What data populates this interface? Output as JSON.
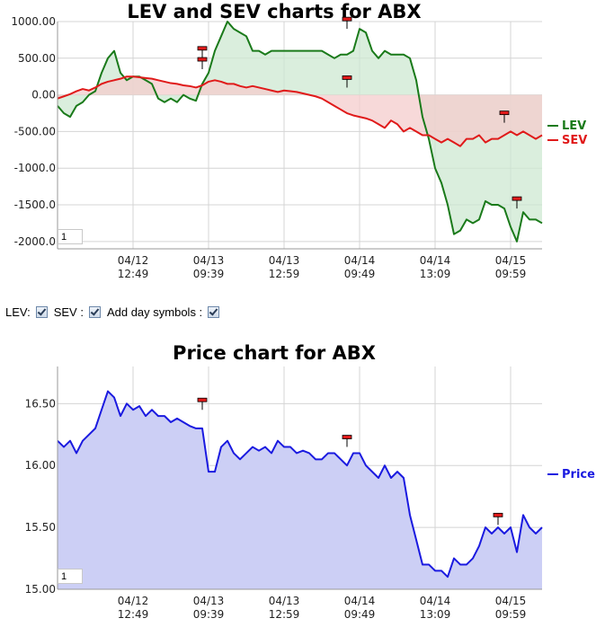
{
  "charts": {
    "lev_sev": {
      "title": "LEV and SEV charts for ABX",
      "zoom_value": "1",
      "chart_data": {
        "type": "area",
        "title": "LEV and SEV charts for ABX",
        "ylim": [
          -2100,
          1000
        ],
        "y_ticks": [
          "1000.00",
          "500.00",
          "0.00",
          "-500.00",
          "-1000.0",
          "-1500.0",
          "-2000.0"
        ],
        "y_tick_values": [
          1000,
          500,
          0,
          -500,
          -1000,
          -1500,
          -2000
        ],
        "x_tick_labels": [
          {
            "date": "04/12",
            "time": "12:49",
            "x": 12
          },
          {
            "date": "04/13",
            "time": "09:39",
            "x": 24
          },
          {
            "date": "04/13",
            "time": "12:59",
            "x": 36
          },
          {
            "date": "04/14",
            "time": "09:49",
            "x": 48
          },
          {
            "date": "04/14",
            "time": "13:09",
            "x": 60
          },
          {
            "date": "04/15",
            "time": "09:59",
            "x": 72
          }
        ],
        "xlim": [
          0,
          77
        ],
        "series": [
          {
            "name": "LEV",
            "color": "#1a7a1a",
            "fill": "#cde8d2",
            "x": [
              0,
              1,
              2,
              3,
              4,
              5,
              6,
              7,
              8,
              9,
              10,
              11,
              12,
              13,
              14,
              15,
              16,
              17,
              18,
              19,
              20,
              21,
              22,
              23,
              24,
              25,
              26,
              27,
              28,
              29,
              30,
              31,
              32,
              33,
              34,
              35,
              36,
              37,
              38,
              39,
              40,
              41,
              42,
              43,
              44,
              45,
              46,
              47,
              48,
              49,
              50,
              51,
              52,
              53,
              54,
              55,
              56,
              57,
              58,
              59,
              60,
              61,
              62,
              63,
              64,
              65,
              66,
              67,
              68,
              69,
              70,
              71,
              72,
              73,
              74,
              75,
              76,
              77
            ],
            "values": [
              -150,
              -250,
              -300,
              -150,
              -100,
              0,
              50,
              300,
              500,
              600,
              300,
              200,
              250,
              250,
              200,
              150,
              -50,
              -100,
              -50,
              -100,
              0,
              -50,
              -80,
              150,
              300,
              600,
              800,
              1000,
              900,
              850,
              800,
              600,
              600,
              550,
              600,
              600,
              600,
              600,
              600,
              600,
              600,
              600,
              600,
              550,
              500,
              550,
              550,
              600,
              900,
              850,
              600,
              500,
              600,
              550,
              550,
              550,
              500,
              200,
              -300,
              -600,
              -1000,
              -1200,
              -1500,
              -1900,
              -1850,
              -1700,
              -1750,
              -1700,
              -1450,
              -1500,
              -1500,
              -1550,
              -1800,
              -2000,
              -1600,
              -1700,
              -1700,
              -1750
            ]
          },
          {
            "name": "SEV",
            "color": "#e01a1a",
            "fill": "#f4cccc",
            "x": [
              0,
              1,
              2,
              3,
              4,
              5,
              6,
              7,
              8,
              9,
              10,
              11,
              12,
              13,
              14,
              15,
              16,
              17,
              18,
              19,
              20,
              21,
              22,
              23,
              24,
              25,
              26,
              27,
              28,
              29,
              30,
              31,
              32,
              33,
              34,
              35,
              36,
              37,
              38,
              39,
              40,
              41,
              42,
              43,
              44,
              45,
              46,
              47,
              48,
              49,
              50,
              51,
              52,
              53,
              54,
              55,
              56,
              57,
              58,
              59,
              60,
              61,
              62,
              63,
              64,
              65,
              66,
              67,
              68,
              69,
              70,
              71,
              72,
              73,
              74,
              75,
              76,
              77
            ],
            "values": [
              -50,
              -20,
              10,
              50,
              80,
              60,
              100,
              150,
              180,
              200,
              220,
              250,
              250,
              240,
              230,
              220,
              200,
              180,
              160,
              150,
              130,
              120,
              100,
              130,
              180,
              200,
              180,
              150,
              150,
              120,
              100,
              120,
              100,
              80,
              60,
              40,
              60,
              50,
              40,
              20,
              0,
              -20,
              -50,
              -100,
              -150,
              -200,
              -250,
              -280,
              -300,
              -320,
              -350,
              -400,
              -450,
              -350,
              -400,
              -500,
              -450,
              -500,
              -550,
              -550,
              -600,
              -650,
              -600,
              -650,
              -700,
              -600,
              -600,
              -550,
              -650,
              -600,
              -600,
              -550,
              -500,
              -550,
              -500,
              -550,
              -600,
              -550
            ]
          }
        ],
        "markers_x": [
          23,
          23,
          46,
          46,
          71,
          73
        ],
        "markers_y": [
          500,
          350,
          900,
          100,
          -380,
          -1550
        ]
      }
    },
    "price": {
      "title": "Price chart for ABX",
      "zoom_value": "1",
      "chart_data": {
        "type": "area",
        "title": "Price chart for ABX",
        "ylim": [
          15.0,
          16.8
        ],
        "y_ticks": [
          "16.50",
          "16.00",
          "15.50",
          "15.00"
        ],
        "y_tick_values": [
          16.5,
          16.0,
          15.5,
          15.0
        ],
        "x_tick_labels": [
          {
            "date": "04/12",
            "time": "12:49",
            "x": 12
          },
          {
            "date": "04/13",
            "time": "09:39",
            "x": 24
          },
          {
            "date": "04/13",
            "time": "12:59",
            "x": 36
          },
          {
            "date": "04/14",
            "time": "09:49",
            "x": 48
          },
          {
            "date": "04/14",
            "time": "13:09",
            "x": 60
          },
          {
            "date": "04/15",
            "time": "09:59",
            "x": 72
          }
        ],
        "xlim": [
          0,
          77
        ],
        "series": [
          {
            "name": "Price",
            "color": "#1a1ae0",
            "fill": "#cccff5",
            "x": [
              0,
              1,
              2,
              3,
              4,
              5,
              6,
              7,
              8,
              9,
              10,
              11,
              12,
              13,
              14,
              15,
              16,
              17,
              18,
              19,
              20,
              21,
              22,
              23,
              24,
              25,
              26,
              27,
              28,
              29,
              30,
              31,
              32,
              33,
              34,
              35,
              36,
              37,
              38,
              39,
              40,
              41,
              42,
              43,
              44,
              45,
              46,
              47,
              48,
              49,
              50,
              51,
              52,
              53,
              54,
              55,
              56,
              57,
              58,
              59,
              60,
              61,
              62,
              63,
              64,
              65,
              66,
              67,
              68,
              69,
              70,
              71,
              72,
              73,
              74,
              75,
              76,
              77
            ],
            "values": [
              16.2,
              16.15,
              16.2,
              16.1,
              16.2,
              16.25,
              16.3,
              16.45,
              16.6,
              16.55,
              16.4,
              16.5,
              16.45,
              16.48,
              16.4,
              16.45,
              16.4,
              16.4,
              16.35,
              16.38,
              16.35,
              16.32,
              16.3,
              16.3,
              15.95,
              15.95,
              16.15,
              16.2,
              16.1,
              16.05,
              16.1,
              16.15,
              16.12,
              16.15,
              16.1,
              16.2,
              16.15,
              16.15,
              16.1,
              16.12,
              16.1,
              16.05,
              16.05,
              16.1,
              16.1,
              16.05,
              16.0,
              16.1,
              16.1,
              16.0,
              15.95,
              15.9,
              16.0,
              15.9,
              15.95,
              15.9,
              15.6,
              15.4,
              15.2,
              15.2,
              15.15,
              15.15,
              15.1,
              15.25,
              15.2,
              15.2,
              15.25,
              15.35,
              15.5,
              15.45,
              15.5,
              15.45,
              15.5,
              15.3,
              15.6,
              15.5,
              15.45,
              15.5
            ]
          }
        ],
        "markers_x": [
          23,
          46,
          70
        ],
        "markers_y": [
          16.45,
          16.15,
          15.52
        ]
      }
    }
  },
  "controls": {
    "lev_label": "LEV:",
    "sev_label": "SEV :",
    "day_symbols_label": "Add day symbols :"
  }
}
